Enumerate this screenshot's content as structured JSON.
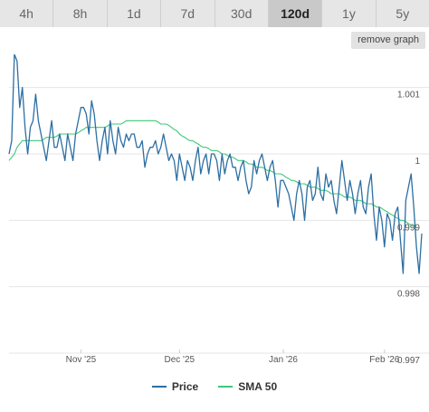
{
  "tabs": [
    {
      "label": "4h",
      "active": false
    },
    {
      "label": "8h",
      "active": false
    },
    {
      "label": "1d",
      "active": false
    },
    {
      "label": "7d",
      "active": false
    },
    {
      "label": "30d",
      "active": false
    },
    {
      "label": "120d",
      "active": true
    },
    {
      "label": "1y",
      "active": false
    },
    {
      "label": "5y",
      "active": false
    }
  ],
  "remove_graph_label": "remove graph",
  "colors": {
    "price": "#2c6fa3",
    "sma": "#3ec87a",
    "grid": "#e6e6e6"
  },
  "chart_data": {
    "type": "line",
    "title": "",
    "xlabel": "",
    "ylabel": "",
    "ylim": [
      0.997,
      1.0015
    ],
    "y_ticks": [
      1.001,
      1,
      0.999,
      0.998,
      0.997
    ],
    "y_tick_labels": [
      "1.001",
      "1",
      "0.999",
      "0.998",
      "0.997"
    ],
    "x_ticks": [
      {
        "label": "Nov '25",
        "index": 27
      },
      {
        "label": "Dec '25",
        "index": 64
      },
      {
        "label": "Jan '26",
        "index": 103
      },
      {
        "label": "Feb '26",
        "index": 141
      }
    ],
    "legend": [
      "Price",
      "SMA 50"
    ],
    "series": [
      {
        "name": "Price",
        "values": [
          1.0,
          1.0002,
          1.0015,
          1.0014,
          1.0007,
          1.001,
          1.0004,
          1.0,
          1.0004,
          1.0005,
          1.0009,
          1.0005,
          1.0003,
          1.0001,
          0.9999,
          1.0002,
          1.0005,
          1.0001,
          1.0001,
          1.0003,
          1.0001,
          0.9999,
          1.0003,
          1.0001,
          0.9999,
          1.0003,
          1.0005,
          1.0007,
          1.0007,
          1.0006,
          1.0003,
          1.0008,
          1.0006,
          1.0002,
          0.9999,
          1.0002,
          1.0004,
          1.0,
          1.0005,
          1.0002,
          1.0,
          1.0004,
          1.0002,
          1.0001,
          1.0003,
          1.0002,
          1.0003,
          1.0003,
          1.0001,
          1.0001,
          1.0002,
          0.9998,
          1.0,
          1.0001,
          1.0001,
          1.0002,
          1.0,
          1.0001,
          1.0003,
          1.0001,
          0.9999,
          1.0,
          0.9999,
          0.9996,
          1.0,
          0.9998,
          0.9996,
          0.9999,
          0.9998,
          0.9996,
          0.9999,
          1.0001,
          0.9997,
          0.9999,
          1.0,
          0.9997,
          1.0,
          1.0,
          0.9999,
          0.9996,
          1.0,
          0.9997,
          0.9999,
          1.0,
          0.9998,
          0.9998,
          0.9996,
          0.9998,
          0.9999,
          0.9996,
          0.9994,
          0.9995,
          0.9999,
          0.9997,
          0.9999,
          1.0,
          0.9998,
          0.9996,
          0.9998,
          0.9999,
          0.9996,
          0.9992,
          0.9996,
          0.9996,
          0.9995,
          0.9994,
          0.9992,
          0.999,
          0.9994,
          0.9996,
          0.9994,
          0.999,
          0.9995,
          0.9996,
          0.9993,
          0.9994,
          0.9998,
          0.9994,
          0.9993,
          0.9997,
          0.9995,
          0.9996,
          0.9993,
          0.9991,
          0.9995,
          0.9999,
          0.9996,
          0.9993,
          0.9996,
          0.9994,
          0.9991,
          0.9994,
          0.9996,
          0.9992,
          0.9991,
          0.9995,
          0.9997,
          0.9991,
          0.9987,
          0.9992,
          0.999,
          0.9986,
          0.9991,
          0.999,
          0.9987,
          0.9991,
          0.9992,
          0.9987,
          0.9982,
          0.9993,
          0.9995,
          0.9997,
          0.9992,
          0.9986,
          0.9982,
          0.9988
        ]
      },
      {
        "name": "SMA 50",
        "values": [
          0.9999,
          0.99995,
          1.0,
          1.0001,
          1.00015,
          1.0002,
          1.0002,
          1.0002,
          1.0002,
          1.0002,
          1.0002,
          1.0002,
          1.0002,
          1.00022,
          1.00025,
          1.00025,
          1.00025,
          1.00025,
          1.00027,
          1.0003,
          1.0003,
          1.0003,
          1.0003,
          1.0003,
          1.0003,
          1.0003,
          1.00032,
          1.00035,
          1.00037,
          1.0004,
          1.0004,
          1.0004,
          1.0004,
          1.0004,
          1.0004,
          1.0004,
          1.0004,
          1.00042,
          1.00045,
          1.00045,
          1.00045,
          1.00045,
          1.00045,
          1.00047,
          1.0005,
          1.0005,
          1.0005,
          1.0005,
          1.0005,
          1.0005,
          1.0005,
          1.0005,
          1.0005,
          1.0005,
          1.0005,
          1.0005,
          1.00048,
          1.00045,
          1.00045,
          1.00045,
          1.00043,
          1.0004,
          1.00037,
          1.00035,
          1.0003,
          1.00027,
          1.00025,
          1.00022,
          1.0002,
          1.0002,
          1.00017,
          1.00015,
          1.00012,
          1.0001,
          1.0001,
          1.00008,
          1.00005,
          1.00005,
          1.00005,
          1.00003,
          1.0,
          1.0,
          0.99998,
          0.99995,
          0.99995,
          0.99993,
          0.9999,
          0.9999,
          0.9999,
          0.99988,
          0.99985,
          0.99985,
          0.99983,
          0.9998,
          0.9998,
          0.9998,
          0.99978,
          0.99975,
          0.99975,
          0.99973,
          0.9997,
          0.9997,
          0.9997,
          0.99968,
          0.99965,
          0.99963,
          0.9996,
          0.9996,
          0.99958,
          0.99955,
          0.99955,
          0.99955,
          0.99953,
          0.9995,
          0.9995,
          0.9995,
          0.99948,
          0.99945,
          0.99945,
          0.99945,
          0.99943,
          0.9994,
          0.9994,
          0.9994,
          0.9994,
          0.99938,
          0.99935,
          0.99935,
          0.99935,
          0.99933,
          0.9993,
          0.9993,
          0.9993,
          0.99928,
          0.99925,
          0.99925,
          0.99925,
          0.99923,
          0.9992,
          0.9992,
          0.99918,
          0.99915,
          0.99913,
          0.9991,
          0.99908,
          0.99905,
          0.99903,
          0.999,
          0.999,
          0.99898,
          0.99895,
          0.99893,
          0.9989,
          0.9989
        ]
      }
    ],
    "grid": true,
    "legend_position": "bottom-center"
  }
}
